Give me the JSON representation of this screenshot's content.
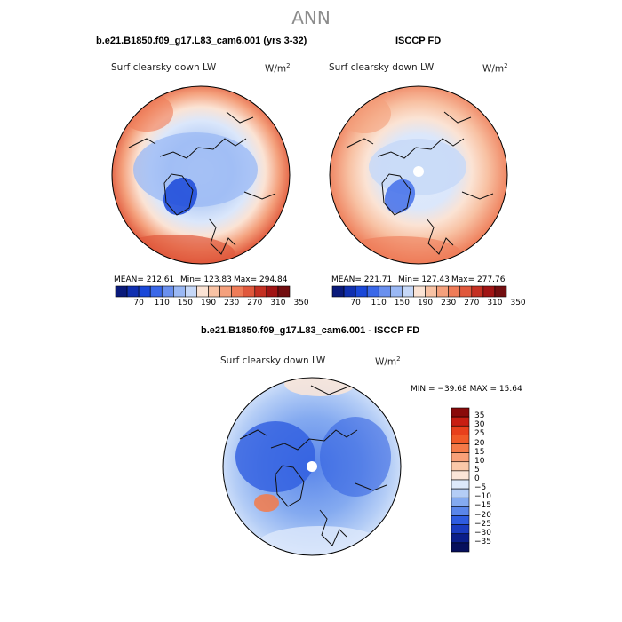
{
  "header": {
    "title": "ANN"
  },
  "panel_model": {
    "case_title": "b.e21.B1850.f09_g17.L83_cam6.001 (yrs 3-32)",
    "variable": "Surf clearsky down LW",
    "units": "W/m",
    "units_sup": "2",
    "stats": {
      "mean": "MEAN= 212.61",
      "min": "Min= 123.83",
      "max": "Max= 294.84"
    }
  },
  "panel_obs": {
    "case_title": "ISCCP FD",
    "variable": "Surf clearsky down LW",
    "units": "W/m",
    "units_sup": "2",
    "stats": {
      "mean": "MEAN= 221.71",
      "min": "Min= 127.43",
      "max": "Max= 277.76"
    }
  },
  "panel_diff": {
    "case_title": "b.e21.B1850.f09_g17.L83_cam6.001 - ISCCP FD",
    "variable": "Surf clearsky down LW",
    "units": "W/m",
    "units_sup": "2",
    "stats": {
      "minmax": "MIN = −39.68 MAX =  15.64"
    }
  },
  "colorbar_abs": {
    "ticks": [
      "70",
      "110",
      "150",
      "190",
      "230",
      "270",
      "310",
      "350"
    ],
    "colors": [
      "#0a1a7a",
      "#1030b0",
      "#1a48d8",
      "#3a68e8",
      "#6a90ee",
      "#9ab8f4",
      "#c6d8f8",
      "#fbe3d4",
      "#f8c2a4",
      "#f4a07c",
      "#ee7c58",
      "#e0583c",
      "#c43022",
      "#a01414",
      "#720e10"
    ]
  },
  "colorbar_diff": {
    "labels": [
      "35",
      "30",
      "25",
      "20",
      "15",
      "10",
      "5",
      "0",
      "−5",
      "−10",
      "−15",
      "−20",
      "−25",
      "−30",
      "−35"
    ],
    "colors": [
      "#8a0a0a",
      "#c81e12",
      "#e8401c",
      "#f05a28",
      "#f47a48",
      "#f8a078",
      "#fbc8a8",
      "#fce6d8",
      "#dde9fb",
      "#b4cdf6",
      "#84aaf0",
      "#5a86ea",
      "#2e5ce0",
      "#1a3cc0",
      "#0a1e8a"
    ]
  }
}
